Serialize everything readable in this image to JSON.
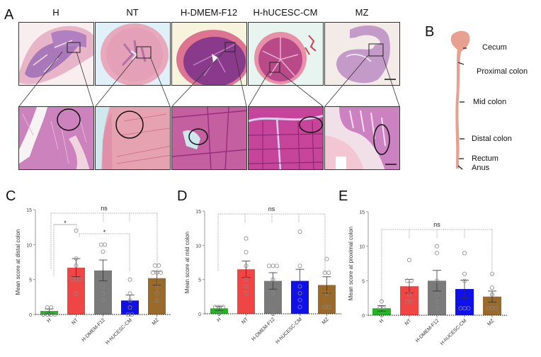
{
  "figure": {
    "panel_a": {
      "letter": "A",
      "columns": [
        "H",
        "NT",
        "H-DMEM-F12",
        "H-hUCESC-CM",
        "MZ"
      ]
    },
    "panel_b": {
      "letter": "B",
      "labels": [
        "Cecum",
        "Proximal colon",
        "Mid colon",
        "Distal colon",
        "Rectum",
        "Anus"
      ]
    },
    "panel_c": {
      "letter": "C"
    },
    "panel_d": {
      "letter": "D"
    },
    "panel_e": {
      "letter": "E"
    }
  },
  "colors": {
    "H": "#22b422",
    "NT": "#f04545",
    "H-DMEM-F12": "#7a7a7a",
    "H-hUCESC-CM": "#1010e8",
    "MZ": "#9a6a2a",
    "tissue_pink": "#e7a0ae",
    "colon_diagram": "#e8a090"
  },
  "chart_data": [
    {
      "type": "bar",
      "panel": "C",
      "title": "",
      "xlabel": "",
      "ylabel": "Mean score  at distal colon",
      "ylim": [
        0,
        15
      ],
      "yticks": [
        0,
        5,
        10,
        15
      ],
      "categories": [
        "H",
        "NT",
        "H-DMEM-F12",
        "H-hUCESC-CM",
        "MZ"
      ],
      "values": [
        0.5,
        6.7,
        6.3,
        2.0,
        5.2
      ],
      "sem": [
        0.3,
        1.3,
        1.5,
        0.8,
        1.0
      ],
      "points": [
        [
          1,
          1,
          0,
          0,
          0,
          0
        ],
        [
          12,
          8,
          7,
          5,
          5,
          5,
          3
        ],
        [
          10,
          10,
          9,
          4,
          3,
          2
        ],
        [
          5,
          3,
          2,
          1,
          0,
          0
        ],
        [
          7,
          7,
          6,
          6,
          6,
          3,
          2
        ]
      ],
      "annotations": [
        {
          "text": "ns",
          "from": "H",
          "to": "MZ"
        },
        {
          "text": "*",
          "from": "H",
          "to": "NT"
        },
        {
          "text": "*",
          "from": "NT",
          "to": "H-hUCESC-CM"
        }
      ]
    },
    {
      "type": "bar",
      "panel": "D",
      "title": "",
      "xlabel": "",
      "ylabel": "Mean score  at mid colon",
      "ylim": [
        0,
        15
      ],
      "yticks": [
        0,
        5,
        10,
        15
      ],
      "categories": [
        "H",
        "NT",
        "H-DMEM-F12",
        "H-hUCESC-CM",
        "MZ"
      ],
      "values": [
        0.8,
        6.5,
        4.8,
        4.8,
        4.2
      ],
      "sem": [
        0.3,
        1.2,
        1.2,
        1.7,
        1.2
      ],
      "points": [
        [
          1,
          1,
          1,
          0
        ],
        [
          11,
          9,
          7,
          5,
          4,
          3
        ],
        [
          7,
          7,
          7,
          5,
          3,
          0
        ],
        [
          12,
          7,
          4,
          3,
          2,
          1
        ],
        [
          8,
          6,
          6,
          3,
          1,
          1
        ]
      ],
      "annotations": [
        {
          "text": "ns",
          "from": "H",
          "to": "MZ"
        }
      ]
    },
    {
      "type": "bar",
      "panel": "E",
      "title": "",
      "xlabel": "",
      "ylabel": "Mean score  at proximal colon",
      "ylim": [
        0,
        15
      ],
      "yticks": [
        0,
        5,
        10,
        15
      ],
      "categories": [
        "H",
        "NT",
        "H-DMEM-F12",
        "H-hUCESC-CM",
        "MZ"
      ],
      "values": [
        1.0,
        4.2,
        5.0,
        3.8,
        2.7
      ],
      "sem": [
        0.4,
        1.0,
        1.5,
        1.3,
        0.8
      ],
      "points": [
        [
          2,
          1,
          1,
          0
        ],
        [
          8,
          5,
          5,
          3,
          2,
          2
        ],
        [
          10,
          9,
          5,
          3,
          2,
          1
        ],
        [
          9,
          6,
          5,
          1,
          1,
          1
        ],
        [
          6,
          4,
          3,
          1,
          1,
          1
        ]
      ],
      "annotations": [
        {
          "text": "ns",
          "from": "H",
          "to": "MZ"
        }
      ]
    }
  ]
}
